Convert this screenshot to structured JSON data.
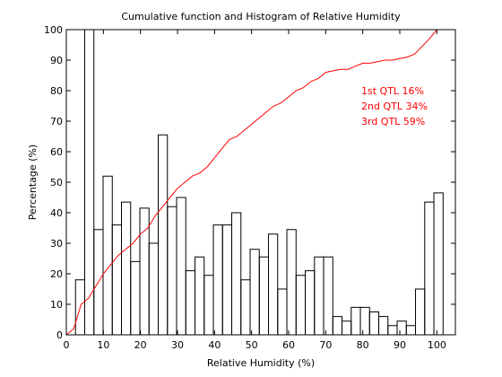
{
  "chart_data": {
    "type": "histogram",
    "title": "Cumulative function and Histogram of Relative Humidity",
    "x_label": "Relative Humidity (%)",
    "y_label": "Percentage (%)",
    "bins": [
      0,
      2.48,
      4.96,
      7.44,
      9.92,
      12.4,
      14.88,
      17.36,
      19.84,
      22.32,
      24.8,
      27.28,
      29.76,
      32.24,
      34.72,
      37.2,
      39.68,
      42.16,
      44.64,
      47.12,
      49.6,
      52.08,
      54.56,
      57.04,
      59.52,
      62,
      64.48,
      66.96,
      69.44,
      71.92,
      74.4,
      76.88,
      79.36,
      81.84,
      84.32,
      86.8,
      89.28,
      91.76,
      94.24,
      96.72,
      99.2,
      101.68
    ],
    "values": [
      0,
      18,
      100,
      34.5,
      52,
      36,
      43.5,
      24,
      41.5,
      30,
      65.5,
      42,
      45,
      21,
      25.5,
      19.5,
      36,
      36,
      40,
      18,
      28,
      25.5,
      33,
      15,
      34.5,
      19.5,
      21,
      25.5,
      25.5,
      6,
      4.5,
      9,
      9,
      7.5,
      6,
      3,
      4.5,
      3,
      15,
      43.5,
      46.5
    ],
    "color": "#000000",
    "cumulative": {
      "type": "line",
      "color": "#ff0000",
      "x": [
        0,
        2,
        4,
        6,
        8,
        10,
        12,
        14,
        16,
        18,
        20,
        22,
        24,
        26,
        28,
        30,
        32,
        34,
        36,
        38,
        40,
        42,
        44,
        46,
        48,
        50,
        52,
        54,
        56,
        58,
        60,
        62,
        64,
        66,
        68,
        70,
        72,
        74,
        76,
        78,
        80,
        82,
        84,
        86,
        88,
        90,
        92,
        94,
        96,
        98,
        100,
        102
      ],
      "values": [
        0,
        2,
        10,
        12,
        16,
        20,
        23,
        26,
        28,
        30,
        33,
        35,
        39,
        42,
        45,
        48,
        50,
        52,
        53,
        55,
        58,
        61,
        64,
        65,
        67,
        69,
        71,
        73,
        75,
        76,
        78,
        80,
        81,
        83,
        84,
        86,
        86.5,
        87,
        87,
        88,
        89,
        89,
        89.5,
        90,
        90,
        90.5,
        91,
        92,
        94.5,
        97,
        100,
        100
      ]
    },
    "annotations": [
      "1st QTL  16%",
      "2nd QTL  34%",
      "3rd QTL  59%"
    ],
    "annotation_color": "#ff0000",
    "xlim": [
      0,
      105
    ],
    "ylim": [
      0,
      100
    ],
    "xticks": [
      0,
      10,
      20,
      30,
      40,
      50,
      60,
      70,
      80,
      90,
      100
    ],
    "yticks": [
      0,
      10,
      20,
      30,
      40,
      50,
      60,
      70,
      80,
      90,
      100
    ]
  }
}
